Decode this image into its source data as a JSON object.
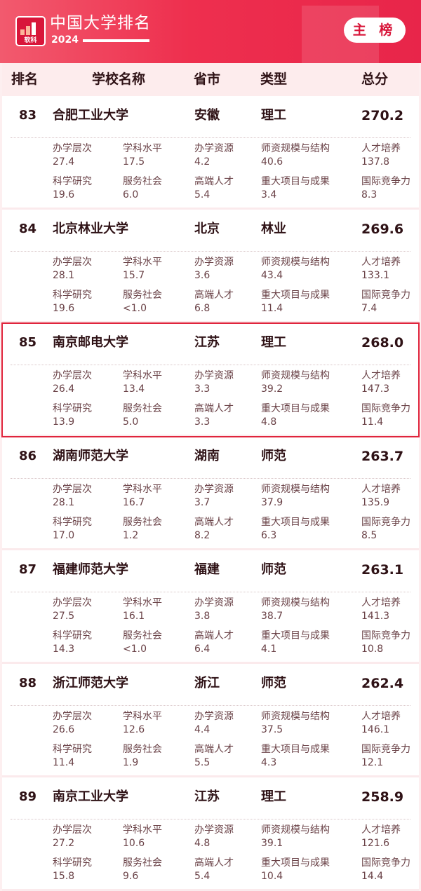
{
  "header": {
    "logo_text": "软科",
    "title": "中国大学排名",
    "year": "2024",
    "main_button": "主 榜",
    "accent": "#e8254a"
  },
  "columns": [
    "排名",
    "学校名称",
    "省市",
    "类型",
    "总分"
  ],
  "metric_labels": [
    "办学层次",
    "学科水平",
    "办学资源",
    "师资规模与结构",
    "人才培养",
    "科学研究",
    "服务社会",
    "高端人才",
    "重大项目与成果",
    "国际竞争力"
  ],
  "rows": [
    {
      "rank": "83",
      "name": "合肥工业大学",
      "province": "安徽",
      "type": "理工",
      "score": "270.2",
      "metrics": [
        "27.4",
        "17.5",
        "4.2",
        "40.6",
        "137.8",
        "19.6",
        "6.0",
        "5.4",
        "3.4",
        "8.3"
      ]
    },
    {
      "rank": "84",
      "name": "北京林业大学",
      "province": "北京",
      "type": "林业",
      "score": "269.6",
      "metrics": [
        "28.1",
        "15.7",
        "3.6",
        "43.4",
        "133.1",
        "19.6",
        "<1.0",
        "6.8",
        "11.4",
        "7.4"
      ]
    },
    {
      "rank": "85",
      "name": "南京邮电大学",
      "province": "江苏",
      "type": "理工",
      "score": "268.0",
      "highlighted": true,
      "metrics": [
        "26.4",
        "13.4",
        "3.3",
        "39.2",
        "147.3",
        "13.9",
        "5.0",
        "3.3",
        "4.8",
        "11.4"
      ]
    },
    {
      "rank": "86",
      "name": "湖南师范大学",
      "province": "湖南",
      "type": "师范",
      "score": "263.7",
      "metrics": [
        "28.1",
        "16.7",
        "3.7",
        "37.9",
        "135.9",
        "17.0",
        "1.2",
        "8.2",
        "6.3",
        "8.5"
      ]
    },
    {
      "rank": "87",
      "name": "福建师范大学",
      "province": "福建",
      "type": "师范",
      "score": "263.1",
      "metrics": [
        "27.5",
        "16.1",
        "3.8",
        "38.7",
        "141.3",
        "14.3",
        "<1.0",
        "6.4",
        "4.1",
        "10.8"
      ]
    },
    {
      "rank": "88",
      "name": "浙江师范大学",
      "province": "浙江",
      "type": "师范",
      "score": "262.4",
      "metrics": [
        "26.6",
        "12.6",
        "4.4",
        "37.5",
        "146.1",
        "11.4",
        "1.9",
        "5.5",
        "4.3",
        "12.1"
      ]
    },
    {
      "rank": "89",
      "name": "南京工业大学",
      "province": "江苏",
      "type": "理工",
      "score": "258.9",
      "metrics": [
        "27.2",
        "10.6",
        "4.8",
        "39.1",
        "121.6",
        "15.8",
        "9.6",
        "5.4",
        "10.4",
        "14.4"
      ]
    }
  ]
}
